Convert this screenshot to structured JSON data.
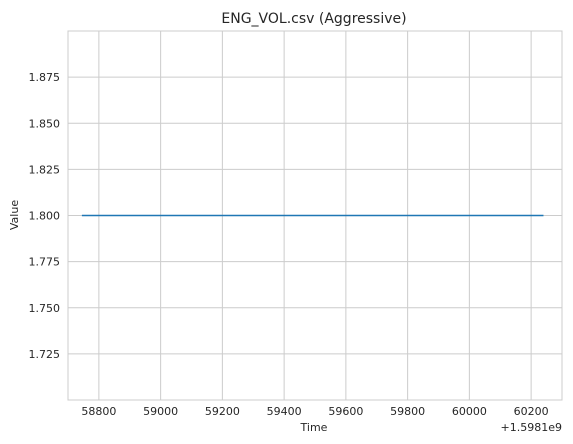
{
  "chart_data": {
    "type": "line",
    "title": "ENG_VOL.csv (Aggressive)",
    "xlabel": "Time",
    "ylabel": "Value",
    "x_offset_label": "+1.5981e9",
    "xlim": [
      58700,
      60300
    ],
    "ylim": [
      1.7,
      1.9
    ],
    "xticks": [
      58800,
      59000,
      59200,
      59400,
      59600,
      59800,
      60000,
      60200
    ],
    "xtick_labels": [
      "58800",
      "59000",
      "59200",
      "59400",
      "59600",
      "59800",
      "60000",
      "60200"
    ],
    "yticks": [
      1.725,
      1.75,
      1.775,
      1.8,
      1.825,
      1.85,
      1.875
    ],
    "ytick_labels": [
      "1.725",
      "1.750",
      "1.775",
      "1.800",
      "1.825",
      "1.850",
      "1.875"
    ],
    "grid": true,
    "series": [
      {
        "x": [
          58745,
          60240
        ],
        "y": [
          1.8,
          1.8
        ],
        "color": "#1f77b4"
      }
    ]
  }
}
